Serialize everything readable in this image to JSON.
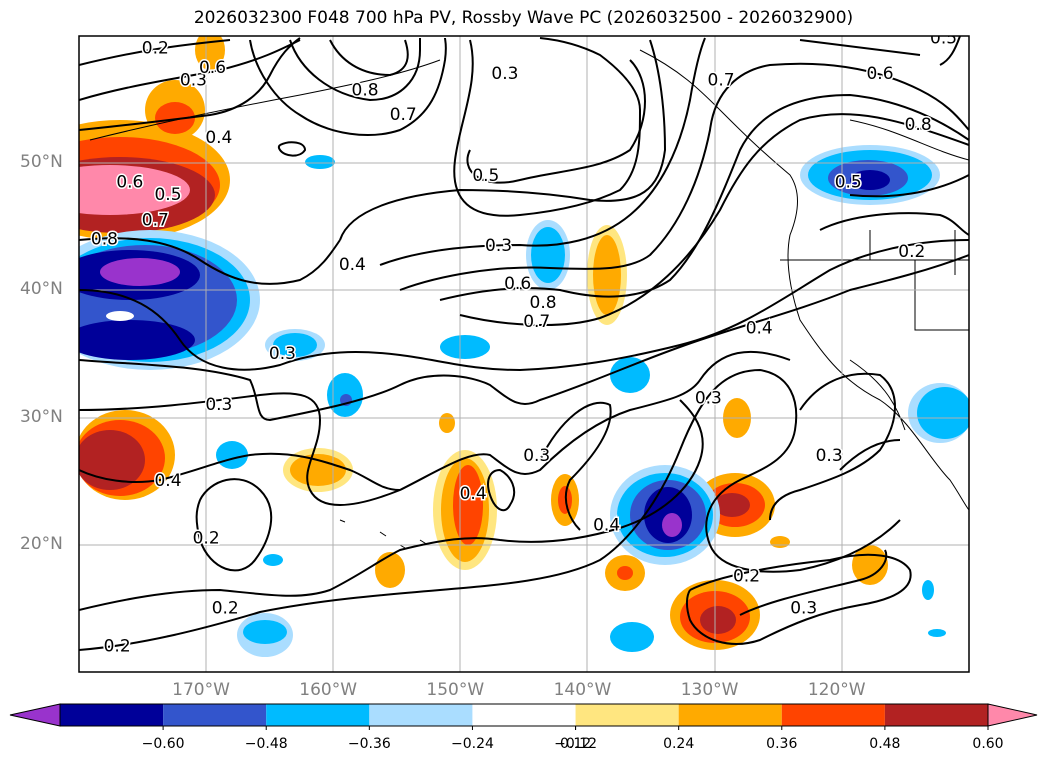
{
  "title": "2026032300 F048 700 hPa PV, Rossby Wave PC (2026032500 - 2026032900)",
  "map": {
    "lon_range": [
      -180,
      -110
    ],
    "lat_range": [
      10,
      60
    ],
    "lat_ticks": [
      "50°N",
      "40°N",
      "30°N",
      "20°N"
    ],
    "lon_ticks": [
      "170°W",
      "160°W",
      "150°W",
      "140°W",
      "130°W",
      "120°W"
    ],
    "contour_labels": [
      {
        "text": "0.2",
        "lon": -174,
        "lat": 59
      },
      {
        "text": "0.3",
        "lon": -171,
        "lat": 56.5
      },
      {
        "text": "0.4",
        "lon": -169,
        "lat": 52
      },
      {
        "text": "0.6",
        "lon": -169.5,
        "lat": 57.5
      },
      {
        "text": "0.8",
        "lon": -157.5,
        "lat": 55.7
      },
      {
        "text": "0.7",
        "lon": -154.5,
        "lat": 53.8
      },
      {
        "text": "0.3",
        "lon": -146.5,
        "lat": 57
      },
      {
        "text": "0.5",
        "lon": -148,
        "lat": 49
      },
      {
        "text": "0.3",
        "lon": -147,
        "lat": 43.5
      },
      {
        "text": "0.4",
        "lon": -158.5,
        "lat": 42
      },
      {
        "text": "0.6",
        "lon": -176,
        "lat": 48.5
      },
      {
        "text": "0.5",
        "lon": -173,
        "lat": 47.5
      },
      {
        "text": "0.7",
        "lon": -174,
        "lat": 45.5
      },
      {
        "text": "0.8",
        "lon": -178,
        "lat": 44
      },
      {
        "text": "0.6",
        "lon": -145.5,
        "lat": 40.5
      },
      {
        "text": "0.8",
        "lon": -143.5,
        "lat": 39
      },
      {
        "text": "0.7",
        "lon": -144,
        "lat": 37.5
      },
      {
        "text": "0.3",
        "lon": -164,
        "lat": 35
      },
      {
        "text": "0.3",
        "lon": -169,
        "lat": 31
      },
      {
        "text": "0.4",
        "lon": -173,
        "lat": 25
      },
      {
        "text": "0.4",
        "lon": -126.5,
        "lat": 37
      },
      {
        "text": "0.3",
        "lon": -130.5,
        "lat": 31.5
      },
      {
        "text": "0.3",
        "lon": -144,
        "lat": 27
      },
      {
        "text": "0.4",
        "lon": -149,
        "lat": 24
      },
      {
        "text": "0.4",
        "lon": -138.5,
        "lat": 21.5
      },
      {
        "text": "0.2",
        "lon": -170,
        "lat": 20.5
      },
      {
        "text": "0.2",
        "lon": -168.5,
        "lat": 15
      },
      {
        "text": "0.2",
        "lon": -177,
        "lat": 12
      },
      {
        "text": "0.2",
        "lon": -127.5,
        "lat": 17.5
      },
      {
        "text": "0.3",
        "lon": -123,
        "lat": 15
      },
      {
        "text": "0.3",
        "lon": -121,
        "lat": 27
      },
      {
        "text": "0.7",
        "lon": -129.5,
        "lat": 56.5
      },
      {
        "text": "0.6",
        "lon": -117,
        "lat": 57
      },
      {
        "text": "0.8",
        "lon": -114,
        "lat": 53
      },
      {
        "text": "0.5",
        "lon": -119.5,
        "lat": 48.5
      },
      {
        "text": "0.2",
        "lon": -114.5,
        "lat": 43
      },
      {
        "text": "0.5",
        "lon": -112,
        "lat": 59.8
      }
    ]
  },
  "colorbar": {
    "levels": [
      "−0.60",
      "−0.48",
      "−0.36",
      "−0.24",
      "−0.12",
      "0.12",
      "0.24",
      "0.36",
      "0.48",
      "0.60"
    ],
    "colors": [
      "#9933cc",
      "#000099",
      "#3355cc",
      "#00bbff",
      "#aaddff",
      "#ffffff",
      "#ffe680",
      "#ffaa00",
      "#ff4400",
      "#b22222",
      "#ff88aa"
    ]
  }
}
